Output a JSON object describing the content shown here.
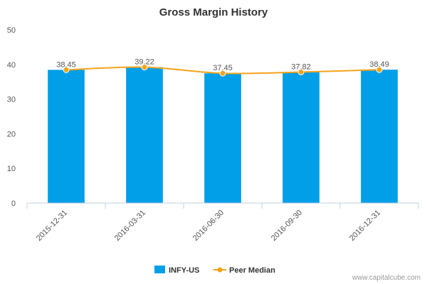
{
  "chart_data": {
    "type": "bar",
    "title": "Gross Margin History",
    "categories": [
      "2015-12-31",
      "2016-03-31",
      "2016-06-30",
      "2016-09-30",
      "2016-12-31"
    ],
    "series": [
      {
        "name": "INFY-US",
        "kind": "bar",
        "values": [
          38.45,
          39.22,
          37.45,
          37.82,
          38.49
        ]
      },
      {
        "name": "Peer Median",
        "kind": "line",
        "values": [
          38.45,
          39.22,
          37.45,
          37.82,
          38.49
        ]
      }
    ],
    "data_labels": [
      "38.45",
      "39.22",
      "37.45",
      "37.82",
      "38.49"
    ],
    "ylim": [
      0,
      50
    ],
    "yticks": [
      0,
      10,
      20,
      30,
      40,
      50
    ],
    "xlabel": "",
    "ylabel": "",
    "legend_position": "bottom-center",
    "colors": {
      "bar": "#009fe8",
      "line": "#f5a31a",
      "axis": "#c0d0e0"
    }
  },
  "credit": "www.capitalcube.com"
}
